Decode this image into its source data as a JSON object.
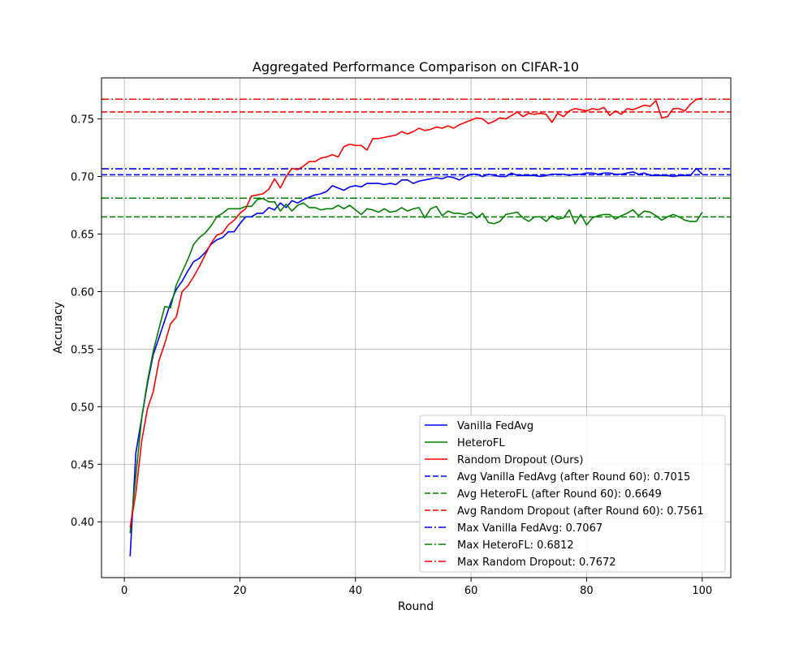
{
  "chart_data": {
    "type": "line",
    "title": "Aggregated Performance Comparison on CIFAR-10",
    "xlabel": "Round",
    "ylabel": "Accuracy",
    "xlim": [
      -3.95,
      104.95
    ],
    "ylim": [
      0.3515,
      0.7857
    ],
    "xticks": [
      0,
      20,
      40,
      60,
      80,
      100
    ],
    "yticks": [
      0.4,
      0.45,
      0.5,
      0.55,
      0.6,
      0.65,
      0.7,
      0.75
    ],
    "grid": true,
    "legend_position": "lower-right",
    "x": [
      1,
      2,
      3,
      4,
      5,
      6,
      7,
      8,
      9,
      10,
      11,
      12,
      13,
      14,
      15,
      16,
      17,
      18,
      19,
      20,
      21,
      22,
      23,
      24,
      25,
      26,
      27,
      28,
      29,
      30,
      31,
      32,
      33,
      34,
      35,
      36,
      37,
      38,
      39,
      40,
      41,
      42,
      43,
      44,
      45,
      46,
      47,
      48,
      49,
      50,
      51,
      52,
      53,
      54,
      55,
      56,
      57,
      58,
      59,
      60,
      61,
      62,
      63,
      64,
      65,
      66,
      67,
      68,
      69,
      70,
      71,
      72,
      73,
      74,
      75,
      76,
      77,
      78,
      79,
      80,
      81,
      82,
      83,
      84,
      85,
      86,
      87,
      88,
      89,
      90,
      91,
      92,
      93,
      94,
      95,
      96,
      97,
      98,
      99,
      100
    ],
    "series": [
      {
        "name": "Vanilla FedAvg",
        "color": "#0000ff",
        "style": "solid",
        "values": [
          0.37,
          0.46,
          0.49,
          0.52,
          0.545,
          0.56,
          0.575,
          0.59,
          0.602,
          0.609,
          0.618,
          0.626,
          0.629,
          0.634,
          0.641,
          0.645,
          0.647,
          0.652,
          0.652,
          0.659,
          0.665,
          0.665,
          0.668,
          0.668,
          0.673,
          0.671,
          0.677,
          0.673,
          0.679,
          0.677,
          0.68,
          0.682,
          0.684,
          0.685,
          0.687,
          0.692,
          0.69,
          0.688,
          0.691,
          0.692,
          0.691,
          0.694,
          0.694,
          0.694,
          0.693,
          0.694,
          0.693,
          0.697,
          0.697,
          0.694,
          0.696,
          0.697,
          0.698,
          0.699,
          0.698,
          0.7,
          0.699,
          0.697,
          0.7,
          0.702,
          0.702,
          0.7,
          0.702,
          0.701,
          0.7,
          0.7,
          0.703,
          0.701,
          0.701,
          0.701,
          0.701,
          0.7,
          0.701,
          0.702,
          0.702,
          0.702,
          0.701,
          0.702,
          0.702,
          0.703,
          0.703,
          0.702,
          0.703,
          0.703,
          0.702,
          0.702,
          0.703,
          0.704,
          0.702,
          0.703,
          0.701,
          0.701,
          0.701,
          0.701,
          0.7,
          0.701,
          0.701,
          0.701,
          0.707,
          0.702
        ]
      },
      {
        "name": "HeteroFL",
        "color": "#008000",
        "style": "solid",
        "values": [
          0.39,
          0.44,
          0.49,
          0.522,
          0.548,
          0.568,
          0.587,
          0.586,
          0.606,
          0.617,
          0.628,
          0.641,
          0.647,
          0.651,
          0.657,
          0.665,
          0.668,
          0.672,
          0.672,
          0.672,
          0.674,
          0.674,
          0.68,
          0.681,
          0.678,
          0.678,
          0.67,
          0.676,
          0.67,
          0.675,
          0.677,
          0.673,
          0.673,
          0.671,
          0.672,
          0.672,
          0.675,
          0.672,
          0.675,
          0.671,
          0.667,
          0.672,
          0.671,
          0.669,
          0.672,
          0.669,
          0.67,
          0.673,
          0.67,
          0.672,
          0.673,
          0.664,
          0.672,
          0.674,
          0.666,
          0.67,
          0.668,
          0.668,
          0.667,
          0.669,
          0.664,
          0.668,
          0.66,
          0.659,
          0.661,
          0.667,
          0.668,
          0.669,
          0.664,
          0.661,
          0.665,
          0.665,
          0.661,
          0.666,
          0.663,
          0.664,
          0.671,
          0.659,
          0.667,
          0.658,
          0.664,
          0.666,
          0.667,
          0.667,
          0.663,
          0.666,
          0.668,
          0.671,
          0.666,
          0.67,
          0.669,
          0.666,
          0.662,
          0.665,
          0.667,
          0.665,
          0.662,
          0.661,
          0.661,
          0.669
        ]
      },
      {
        "name": "Random Dropout (Ours)",
        "color": "#ff0000",
        "style": "solid",
        "values": [
          0.395,
          0.425,
          0.47,
          0.498,
          0.513,
          0.54,
          0.555,
          0.572,
          0.578,
          0.6,
          0.605,
          0.613,
          0.622,
          0.632,
          0.642,
          0.649,
          0.651,
          0.658,
          0.662,
          0.668,
          0.672,
          0.683,
          0.684,
          0.685,
          0.689,
          0.698,
          0.69,
          0.7,
          0.707,
          0.706,
          0.709,
          0.713,
          0.713,
          0.716,
          0.717,
          0.719,
          0.717,
          0.726,
          0.728,
          0.727,
          0.727,
          0.723,
          0.733,
          0.733,
          0.734,
          0.735,
          0.736,
          0.739,
          0.737,
          0.739,
          0.742,
          0.74,
          0.741,
          0.743,
          0.742,
          0.744,
          0.742,
          0.745,
          0.747,
          0.749,
          0.751,
          0.75,
          0.746,
          0.748,
          0.751,
          0.75,
          0.753,
          0.756,
          0.752,
          0.755,
          0.754,
          0.755,
          0.754,
          0.747,
          0.755,
          0.752,
          0.757,
          0.759,
          0.758,
          0.757,
          0.759,
          0.758,
          0.76,
          0.753,
          0.757,
          0.754,
          0.759,
          0.758,
          0.76,
          0.762,
          0.761,
          0.766,
          0.751,
          0.752,
          0.759,
          0.759,
          0.757,
          0.763,
          0.767,
          0.768
        ]
      }
    ],
    "reference_lines": [
      {
        "name": "Avg Vanilla FedAvg (after Round 60): 0.7015",
        "value": 0.7015,
        "color": "#0000ff",
        "style": "dashed"
      },
      {
        "name": "Avg HeteroFL (after Round 60): 0.6649",
        "value": 0.6649,
        "color": "#008000",
        "style": "dashed"
      },
      {
        "name": "Avg Random Dropout (after Round 60): 0.7561",
        "value": 0.7561,
        "color": "#ff0000",
        "style": "dashed"
      },
      {
        "name": "Max Vanilla FedAvg: 0.7067",
        "value": 0.7067,
        "color": "#0000ff",
        "style": "dashdot"
      },
      {
        "name": "Max HeteroFL: 0.6812",
        "value": 0.6812,
        "color": "#008000",
        "style": "dashdot"
      },
      {
        "name": "Max Random Dropout: 0.7672",
        "value": 0.7672,
        "color": "#ff0000",
        "style": "dashdot"
      }
    ]
  }
}
